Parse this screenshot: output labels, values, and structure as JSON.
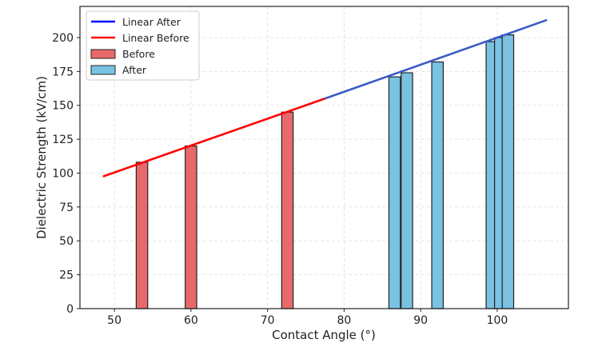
{
  "chart_data": {
    "type": "bar",
    "title": "",
    "xlabel": "Contact Angle (°)",
    "ylabel": "Dielectric Strength (kV/cm)",
    "xlim": [
      45.5,
      109.3
    ],
    "ylim": [
      0,
      223
    ],
    "xticks": [
      50,
      60,
      70,
      80,
      90,
      100
    ],
    "yticks": [
      0,
      25,
      50,
      75,
      100,
      125,
      150,
      175,
      200
    ],
    "grid": true,
    "legend_position": "top-left",
    "bar_width": 1.5,
    "series": [
      {
        "name": "Before",
        "kind": "bar",
        "color": "#e8696b",
        "x": [
          53.6,
          60.0,
          72.6
        ],
        "values": [
          108,
          120,
          145
        ]
      },
      {
        "name": "After",
        "kind": "bar",
        "color": "#79c2e2",
        "x": [
          86.6,
          88.2,
          92.2,
          99.3,
          100.4,
          101.4
        ],
        "values": [
          171,
          174,
          182,
          197,
          200,
          202
        ]
      },
      {
        "name": "Linear Before",
        "kind": "line",
        "color": "#ff0000",
        "x": [
          48.5,
          77.5
        ],
        "values": [
          97.5,
          155
        ]
      },
      {
        "name": "Linear After",
        "kind": "line",
        "color": "#3a5bc7",
        "x": [
          77.5,
          106.5
        ],
        "values": [
          155,
          213
        ]
      }
    ],
    "legend": [
      "Linear After",
      "Linear Before",
      "Before",
      "After"
    ],
    "legend_colors": [
      "#0000ff",
      "#ff0000",
      "#e8696b",
      "#79c2e2"
    ]
  }
}
